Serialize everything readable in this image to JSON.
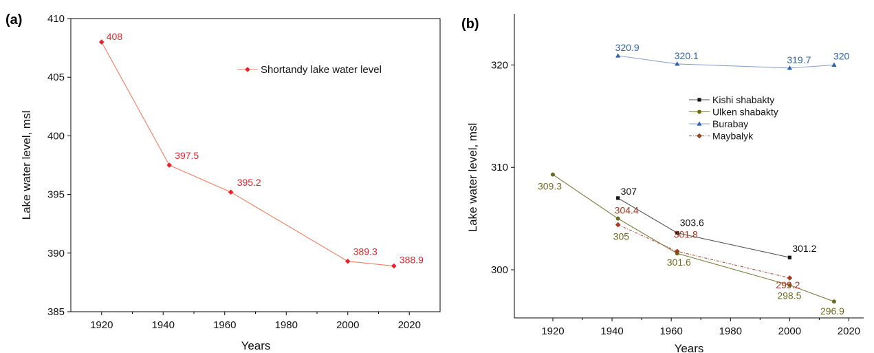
{
  "chart_data": [
    {
      "type": "line",
      "panel_label": "(a)",
      "xlabel": "Years",
      "ylabel": "Lake water level, msl",
      "xticks": [
        1920,
        1940,
        1960,
        1980,
        2000,
        2020
      ],
      "yticks": [
        385,
        390,
        395,
        400,
        405,
        410
      ],
      "xlim": [
        1910,
        2030
      ],
      "ylim": [
        385,
        410
      ],
      "legend_position": "upper-right",
      "series": [
        {
          "name": "Shortandy lake water level",
          "color": "#f47a5c",
          "label_color": "#e8212a",
          "marker": "diamond",
          "x": [
            1920,
            1942,
            1962,
            2000,
            2015
          ],
          "y": [
            408,
            397.5,
            395.2,
            389.3,
            388.9
          ],
          "labels": [
            "408",
            "397.5",
            "395.2",
            "389.3",
            "388.9"
          ]
        }
      ]
    },
    {
      "type": "line",
      "panel_label": "(b)",
      "xlabel": "Years",
      "ylabel": "Lake water level, msl",
      "xticks": [
        1920,
        1940,
        1960,
        1980,
        2000,
        2020
      ],
      "yticks": [
        300,
        310,
        320
      ],
      "xlim": [
        1907,
        2025
      ],
      "ylim": [
        295.3,
        325
      ],
      "legend_position": "center-right",
      "series": [
        {
          "name": "Kishi shabakty",
          "color": "#555555",
          "label_color": "#111111",
          "marker": "square",
          "x": [
            1942,
            1962,
            2000
          ],
          "y": [
            307,
            303.6,
            301.2
          ],
          "labels": [
            "307",
            "303.6",
            "301.2"
          ]
        },
        {
          "name": "Ulken shabakty",
          "color": "#7d7d3e",
          "label_color": "#6b6b1f",
          "marker": "circle",
          "x": [
            1920,
            1942,
            1962,
            2000,
            2015
          ],
          "y": [
            309.3,
            305,
            301.6,
            298.5,
            296.9
          ],
          "labels": [
            "309.3",
            "305",
            "301.6",
            "298.5",
            "296.9"
          ]
        },
        {
          "name": "Burabay",
          "color": "#8ea2cf",
          "label_color": "#2f62ae",
          "marker": "triangle",
          "x": [
            1942,
            1962,
            2000,
            2015
          ],
          "y": [
            320.9,
            320.1,
            319.7,
            320
          ],
          "labels": [
            "320.9",
            "320.1",
            "319.7",
            "320"
          ]
        },
        {
          "name": "Maybalyk",
          "color": "#b04a3a",
          "label_color": "#a5391f",
          "marker": "diamond",
          "dashed": true,
          "x": [
            1942,
            1962,
            2000
          ],
          "y": [
            304.4,
            301.8,
            299.2
          ],
          "labels": [
            "304.4",
            "301.8",
            "299.2"
          ]
        }
      ]
    }
  ]
}
